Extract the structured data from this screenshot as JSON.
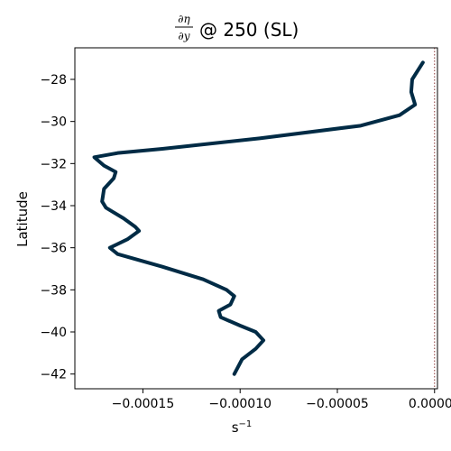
{
  "chart_data": {
    "type": "line",
    "title": "@ 250 (SL)",
    "title_fraction": {
      "numerator": "∂η",
      "denominator": "∂y"
    },
    "xlabel": "s",
    "xlabel_superscript": "−1",
    "ylabel": "Latitude",
    "xlim": [
      -0.000185,
      1.5e-06
    ],
    "ylim": [
      -42.7,
      -26.5
    ],
    "xticks": [
      -0.00015,
      -0.0001,
      -5e-05,
      0.0
    ],
    "xtick_labels": [
      "−0.00015",
      "−0.00010",
      "−0.00005",
      "0.00000"
    ],
    "yticks": [
      -28,
      -30,
      -32,
      -34,
      -36,
      -38,
      -40,
      -42
    ],
    "ytick_labels": [
      "−28",
      "−30",
      "−32",
      "−34",
      "−36",
      "−38",
      "−40",
      "−42"
    ],
    "grid": false,
    "reference_line": {
      "x": 0.0,
      "style": "dotted",
      "color": "#8b3a3a"
    },
    "series": [
      {
        "color": "#002b45",
        "points": [
          {
            "x": -6e-06,
            "y": -27.2
          },
          {
            "x": -1.15e-05,
            "y": -28.0
          },
          {
            "x": -1.2e-05,
            "y": -28.6
          },
          {
            "x": -1e-05,
            "y": -29.2
          },
          {
            "x": -1.8e-05,
            "y": -29.7
          },
          {
            "x": -3.8e-05,
            "y": -30.2
          },
          {
            "x": -9e-05,
            "y": -30.8
          },
          {
            "x": -0.00014,
            "y": -31.3
          },
          {
            "x": -0.000163,
            "y": -31.5
          },
          {
            "x": -0.000175,
            "y": -31.7
          },
          {
            "x": -0.00017,
            "y": -32.1
          },
          {
            "x": -0.000164,
            "y": -32.4
          },
          {
            "x": -0.000165,
            "y": -32.7
          },
          {
            "x": -0.00017,
            "y": -33.2
          },
          {
            "x": -0.000171,
            "y": -33.8
          },
          {
            "x": -0.000169,
            "y": -34.1
          },
          {
            "x": -0.00016,
            "y": -34.6
          },
          {
            "x": -0.000154,
            "y": -35.0
          },
          {
            "x": -0.000152,
            "y": -35.2
          },
          {
            "x": -0.000158,
            "y": -35.6
          },
          {
            "x": -0.000167,
            "y": -36.0
          },
          {
            "x": -0.000163,
            "y": -36.3
          },
          {
            "x": -0.00014,
            "y": -36.9
          },
          {
            "x": -0.000119,
            "y": -37.5
          },
          {
            "x": -0.000107,
            "y": -38.0
          },
          {
            "x": -0.000103,
            "y": -38.3
          },
          {
            "x": -0.000105,
            "y": -38.7
          },
          {
            "x": -0.000111,
            "y": -39.0
          },
          {
            "x": -0.00011,
            "y": -39.3
          },
          {
            "x": -0.0001,
            "y": -39.7
          },
          {
            "x": -9.2e-05,
            "y": -40.0
          },
          {
            "x": -8.8e-05,
            "y": -40.4
          },
          {
            "x": -9.2e-05,
            "y": -40.8
          },
          {
            "x": -9.9e-05,
            "y": -41.3
          },
          {
            "x": -0.000103,
            "y": -42.0
          }
        ]
      }
    ]
  }
}
